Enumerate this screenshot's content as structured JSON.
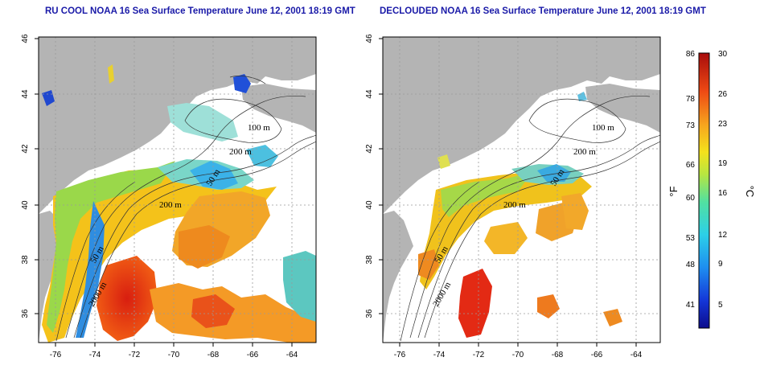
{
  "panels": [
    {
      "title": "RU COOL NOAA 16 Sea Surface Temperature June 12, 2001 18:19 GMT",
      "x_ticks": [
        "-76",
        "-74",
        "-72",
        "-70",
        "-68",
        "-66",
        "-64"
      ],
      "y_ticks": [
        "36",
        "38",
        "40",
        "42",
        "44",
        "46"
      ],
      "contour_labels": [
        "100 m",
        "200 m",
        "50 m",
        "200 m",
        "50 m",
        "2000 m"
      ]
    },
    {
      "title": "DECLOUDED NOAA 16 Sea Surface Temperature June 12, 2001 18:19 GMT",
      "x_ticks": [
        "-76",
        "-74",
        "-72",
        "-70",
        "-68",
        "-66",
        "-64"
      ],
      "y_ticks": [
        "36",
        "38",
        "40",
        "42",
        "44",
        "46"
      ],
      "contour_labels": [
        "100 m",
        "200 m",
        "50 m",
        "200 m",
        "50 m",
        "2000 m"
      ]
    }
  ],
  "colorbar": {
    "fahrenheit_ticks": [
      "86",
      "78",
      "73",
      "66",
      "60",
      "53",
      "48",
      "41"
    ],
    "celsius_ticks": [
      "30",
      "26",
      "23",
      "19",
      "16",
      "12",
      "9",
      "5"
    ],
    "fahrenheit_unit": "°F",
    "celsius_unit": "°C",
    "range_c": [
      3,
      30
    ]
  },
  "colors": {
    "land": "#b4b4b4",
    "cloud": "#ffffff",
    "title": "#1a1aa8",
    "grid": "#9a9a9a"
  }
}
